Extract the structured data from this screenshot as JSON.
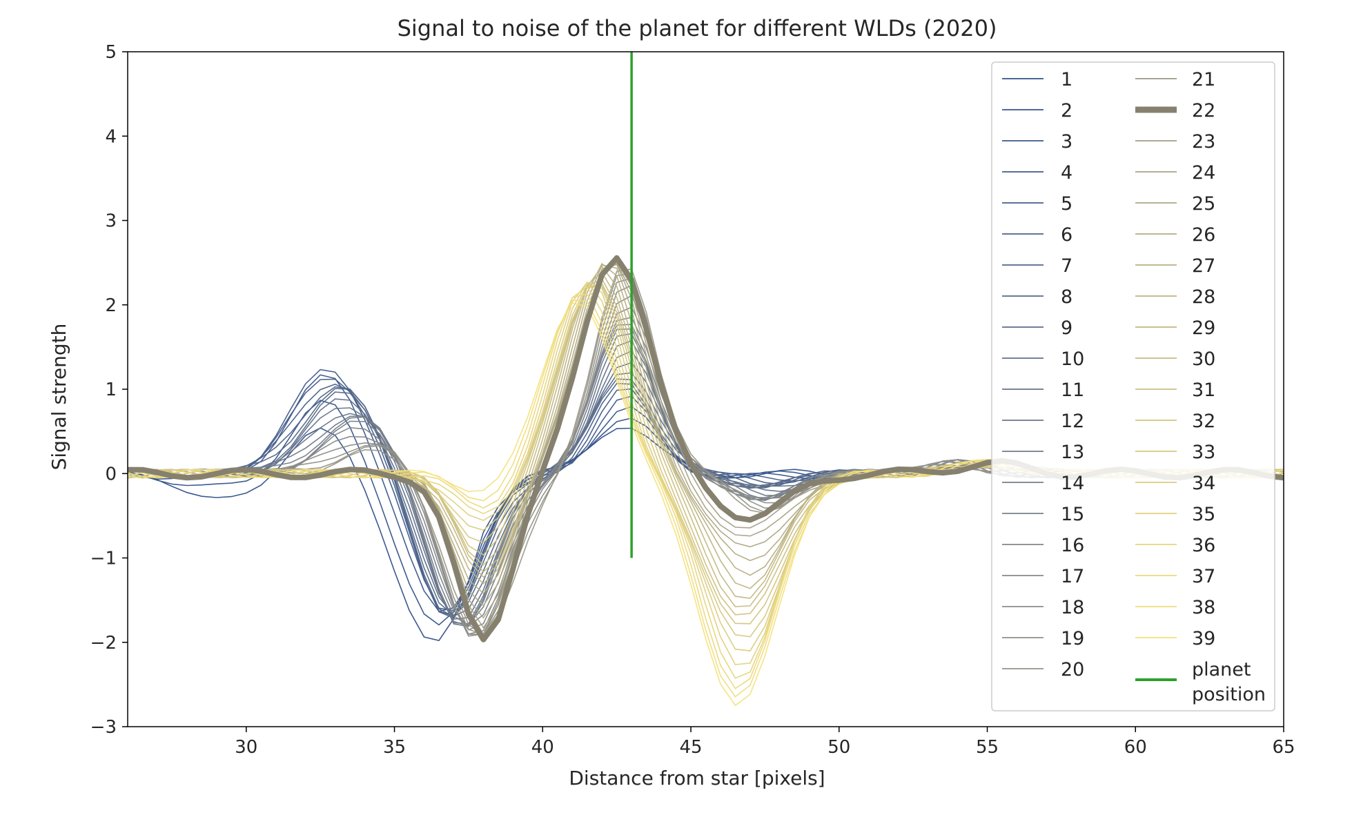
{
  "chart_data": {
    "type": "line",
    "title": "Signal to noise of the planet for different WLDs (2020)",
    "xlabel": "Distance from star [pixels]",
    "ylabel": "Signal strength",
    "xlim": [
      26,
      65
    ],
    "ylim": [
      -3,
      5
    ],
    "xticks": [
      30,
      35,
      40,
      45,
      50,
      55,
      60,
      65
    ],
    "yticks": [
      -3,
      -2,
      -1,
      0,
      1,
      2,
      3,
      4,
      5
    ],
    "xtick_labels": [
      "30",
      "35",
      "40",
      "45",
      "50",
      "55",
      "60",
      "65"
    ],
    "ytick_labels": [
      "−3",
      "−2",
      "−1",
      "0",
      "1",
      "2",
      "3",
      "4",
      "5"
    ],
    "grid": false,
    "legend_position": "top-right",
    "legend_columns": 2,
    "colormap_endpoints": [
      "#2f4f8a",
      "#f5e17a"
    ],
    "highlight_series": "22",
    "highlight_color": "#86806e",
    "planet_position": {
      "name": "planet position",
      "x": 43,
      "y_range": [
        -1,
        5
      ],
      "color": "#2ca02c"
    },
    "legend_labels": [
      "1",
      "2",
      "3",
      "4",
      "5",
      "6",
      "7",
      "8",
      "9",
      "10",
      "11",
      "12",
      "13",
      "14",
      "15",
      "16",
      "17",
      "18",
      "19",
      "20",
      "21",
      "22",
      "23",
      "24",
      "25",
      "26",
      "27",
      "28",
      "29",
      "30",
      "31",
      "32",
      "33",
      "34",
      "35",
      "36",
      "37",
      "38",
      "39"
    ],
    "legend_planet_label_lines": [
      "planet",
      "position"
    ]
  }
}
